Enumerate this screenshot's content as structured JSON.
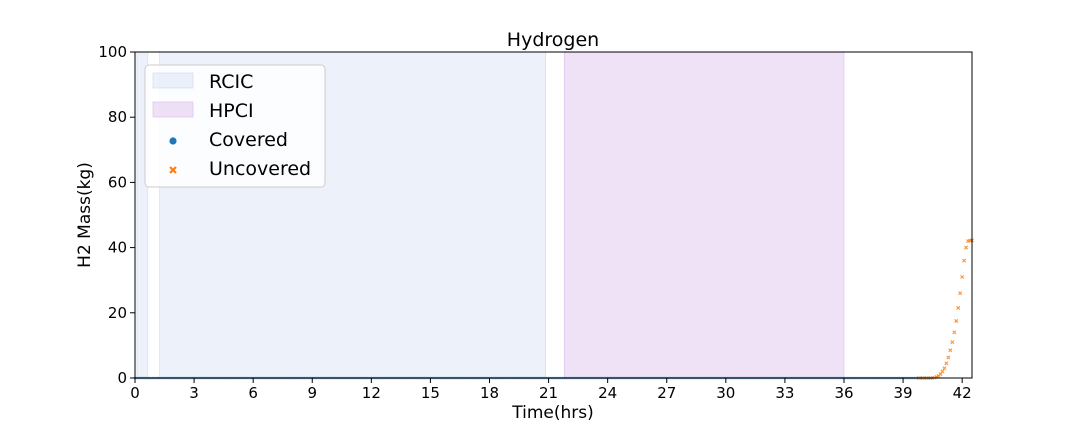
{
  "chart_data": {
    "type": "scatter",
    "title": "Hydrogen",
    "xlabel": "Time(hrs)",
    "ylabel": "H2 Mass(kg)",
    "xlim": [
      0,
      42.5
    ],
    "ylim": [
      0,
      100
    ],
    "xticks": [
      0,
      3,
      6,
      9,
      12,
      15,
      18,
      21,
      24,
      27,
      30,
      33,
      36,
      39,
      42
    ],
    "yticks": [
      0,
      20,
      40,
      60,
      80,
      100
    ],
    "grid": false,
    "legend_position": "top-left",
    "spans": [
      {
        "name": "RCIC",
        "color": "#c9d7f2",
        "opacity": 0.35,
        "ranges": [
          [
            0.1,
            0.65
          ],
          [
            1.25,
            20.85
          ]
        ]
      },
      {
        "name": "HPCI",
        "color": "#d9b8ea",
        "opacity": 0.42,
        "ranges": [
          [
            21.8,
            36.0
          ]
        ]
      }
    ],
    "series": [
      {
        "name": "Covered",
        "marker": "circle",
        "color": "#1f77b4",
        "x_range": [
          0,
          40.5
        ],
        "y_value": 0
      },
      {
        "name": "Uncovered",
        "marker": "x",
        "color": "#ff7f0e",
        "points": [
          [
            39.8,
            0
          ],
          [
            40.0,
            0
          ],
          [
            40.2,
            0
          ],
          [
            40.4,
            0
          ],
          [
            40.6,
            0.1
          ],
          [
            40.7,
            0.3
          ],
          [
            40.8,
            0.6
          ],
          [
            40.9,
            1.2
          ],
          [
            41.0,
            2.0
          ],
          [
            41.1,
            3.0
          ],
          [
            41.2,
            4.5
          ],
          [
            41.3,
            6.3
          ],
          [
            41.4,
            8.5
          ],
          [
            41.5,
            11.0
          ],
          [
            41.6,
            14.0
          ],
          [
            41.7,
            17.5
          ],
          [
            41.8,
            21.5
          ],
          [
            41.9,
            26.0
          ],
          [
            42.0,
            31.0
          ],
          [
            42.1,
            36.0
          ],
          [
            42.2,
            40.0
          ],
          [
            42.3,
            42.0
          ],
          [
            42.4,
            42.2
          ],
          [
            42.5,
            42.2
          ]
        ]
      }
    ]
  }
}
